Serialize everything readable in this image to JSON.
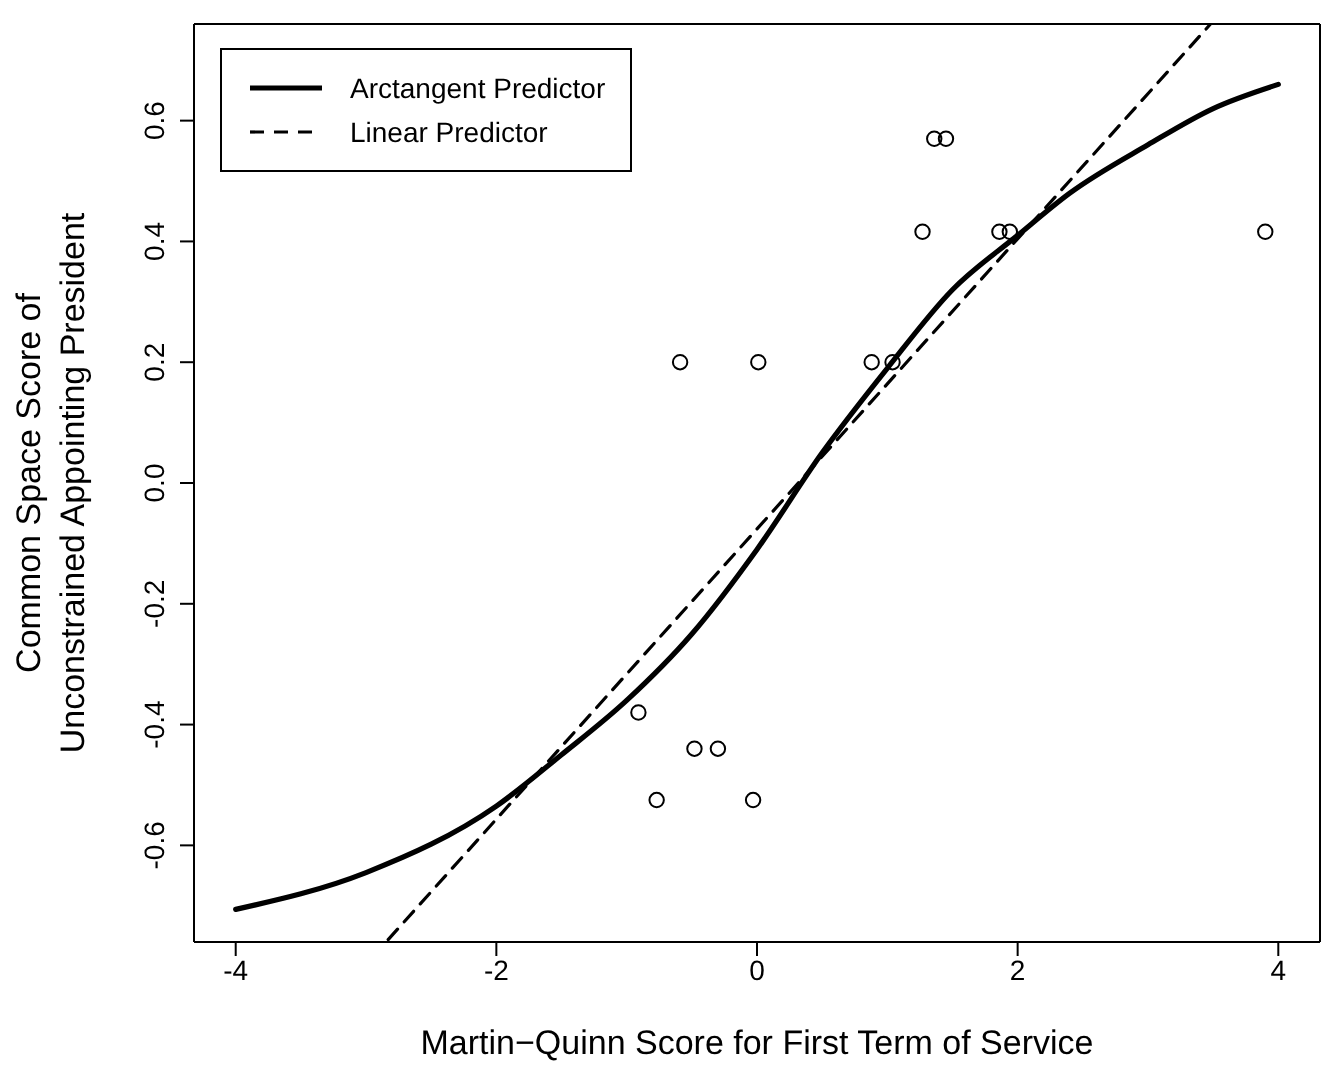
{
  "chart_data": {
    "type": "line",
    "xlabel": "Martin−Quinn Score for First Term of Service",
    "ylabel": "Common Space Score of\nUnconstrained Appointing President",
    "xlim": [
      -4.32,
      4.32
    ],
    "ylim": [
      -0.76,
      0.76
    ],
    "xticks": [
      -4,
      -2,
      0,
      2,
      4
    ],
    "yticks": [
      -0.6,
      -0.4,
      -0.2,
      {
        "value": 0,
        "label": "0.0"
      },
      0.2,
      0.4,
      0.6
    ],
    "grid": false,
    "legend": "top left",
    "series": [
      {
        "name": "Arctangent Predictor",
        "color": "#000000",
        "line_style": "solid",
        "x": [
          -4,
          -3,
          -2,
          -1.5,
          -1,
          -0.5,
          0,
          0.5,
          1,
          1.5,
          2,
          2.4,
          3,
          3.5,
          4
        ],
        "values": [
          -0.706,
          -0.645,
          -0.535,
          -0.45,
          -0.36,
          -0.25,
          -0.11,
          0.05,
          0.19,
          0.32,
          0.41,
          0.48,
          0.56,
          0.62,
          0.66
        ]
      },
      {
        "name": "Linear Predictor",
        "color": "#000000",
        "line_style": "dashed",
        "x": [
          -2.83,
          3.48
        ],
        "values": [
          -0.756,
          0.76
        ]
      },
      {
        "type": "scatter",
        "color": "#000000",
        "marker": "circle",
        "x": [
          1.36,
          1.45,
          1.27,
          1.86,
          1.94,
          3.9,
          -0.59,
          0.01,
          0.88,
          1.04,
          -0.91,
          -0.48,
          -0.3,
          -0.77,
          -0.03
        ],
        "values": [
          0.57,
          0.57,
          0.416,
          0.416,
          0.416,
          0.416,
          0.2,
          0.2,
          0.2,
          0.2,
          -0.38,
          -0.44,
          -0.44,
          -0.525,
          -0.525
        ]
      }
    ]
  }
}
